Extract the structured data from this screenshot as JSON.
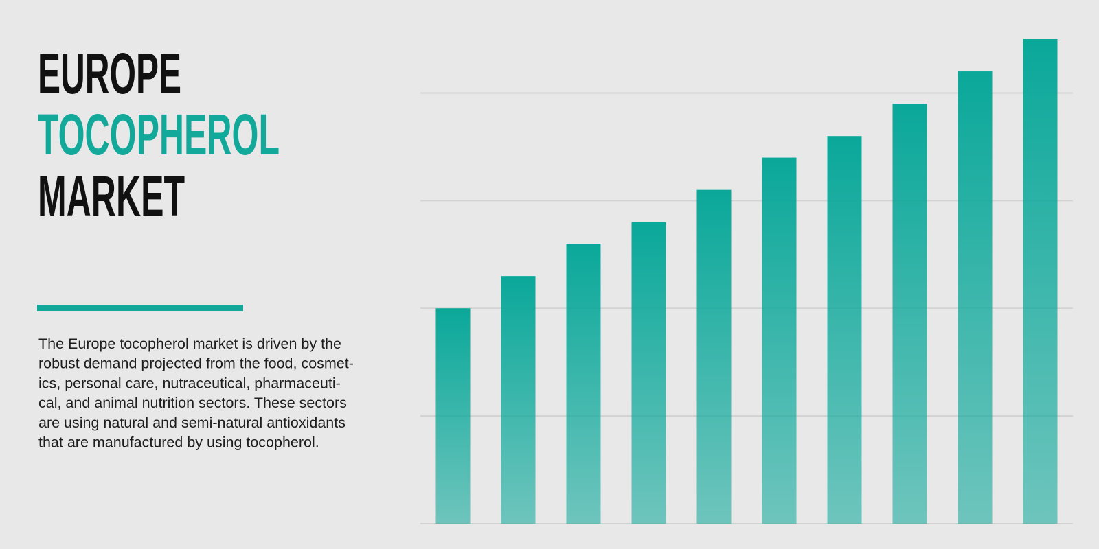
{
  "header": {
    "title_lines": [
      "EUROPE",
      "TOCOPHEROL",
      "MARKET"
    ]
  },
  "description_lines": [
    "The Europe tocopherol market is driven by the",
    "robust demand projected from the food, cosmet-",
    "ics, personal care, nutraceutical, pharmaceuti-",
    "cal, and animal nutrition sectors. These sectors",
    "are using natural and semi-natural antioxidants",
    "that are manufactured by using tocopherol."
  ],
  "chart_data": {
    "type": "bar",
    "categories": [
      null,
      null,
      null,
      null,
      null,
      null,
      null,
      null,
      null,
      null
    ],
    "values": [
      2.0,
      2.3,
      2.6,
      2.8,
      3.1,
      3.4,
      3.6,
      3.9,
      4.2,
      4.5
    ],
    "color": "#0aa89a",
    "ylim": [
      0,
      4.5
    ],
    "yticks": [
      0,
      1,
      2,
      3,
      4
    ],
    "grid": true
  }
}
